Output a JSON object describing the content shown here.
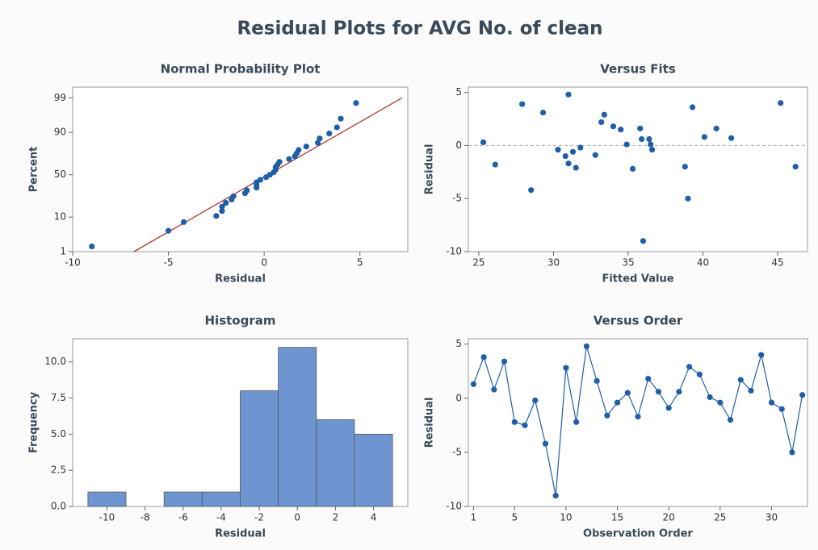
{
  "title": "Residual Plots for AVG No. of clean",
  "chart_data": [
    {
      "type": "probability",
      "title": "Normal Probability Plot",
      "xlabel": "Residual",
      "ylabel": "Percent",
      "x": [
        -9.0,
        -5.0,
        -4.2,
        -2.5,
        -2.2,
        -2.2,
        -2.0,
        -1.7,
        -1.6,
        -1.0,
        -0.9,
        -0.4,
        -0.4,
        -0.4,
        -0.2,
        0.1,
        0.3,
        0.5,
        0.6,
        0.6,
        0.7,
        0.8,
        1.3,
        1.6,
        1.7,
        1.8,
        2.2,
        2.8,
        2.9,
        3.4,
        3.8,
        4.0,
        4.8
      ],
      "values": [
        1.5,
        4.5,
        7.6,
        10.6,
        13.6,
        16.7,
        19.7,
        22.7,
        25.8,
        28.8,
        31.8,
        34.8,
        37.9,
        40.9,
        43.9,
        47.0,
        50.0,
        53.0,
        56.1,
        59.1,
        62.1,
        65.2,
        68.2,
        71.2,
        74.2,
        77.3,
        80.3,
        83.3,
        86.4,
        89.4,
        92.4,
        95.5,
        98.5
      ],
      "color": "#1f5fa8",
      "fit_line": {
        "x": [
          -6.8,
          7.2
        ],
        "y": [
          1,
          99
        ],
        "color": "#b03a2e"
      },
      "xlim": [
        -10,
        7.5
      ],
      "xticks": [
        -10,
        -5,
        0,
        5
      ],
      "ylim": [
        1,
        99.6
      ],
      "yticks": [
        1,
        10,
        50,
        90,
        99
      ]
    },
    {
      "type": "scatter",
      "title": "Versus Fits",
      "xlabel": "Fitted Value",
      "ylabel": "Residual",
      "x": [
        25.3,
        26.1,
        27.9,
        28.5,
        29.3,
        30.3,
        30.8,
        31.0,
        31.0,
        31.3,
        31.5,
        31.8,
        32.8,
        33.2,
        33.4,
        34.0,
        34.5,
        34.9,
        35.3,
        35.8,
        35.9,
        36.0,
        36.4,
        36.5,
        36.6,
        38.8,
        39.0,
        39.3,
        40.1,
        40.9,
        41.9,
        45.2,
        46.2
      ],
      "values": [
        0.3,
        -1.8,
        3.9,
        -4.2,
        3.1,
        -0.4,
        -1.0,
        4.8,
        -1.7,
        -0.6,
        -2.1,
        -0.2,
        -0.9,
        2.2,
        2.9,
        1.8,
        1.5,
        0.1,
        -2.2,
        1.6,
        0.6,
        -9.0,
        0.6,
        0.1,
        -0.4,
        -2.0,
        -5.0,
        3.6,
        0.8,
        1.6,
        0.7,
        4.0,
        -2.0
      ],
      "color": "#1f5fa8",
      "hline": 0,
      "xlim": [
        24.3,
        47
      ],
      "xticks": [
        25,
        30,
        35,
        40,
        45
      ],
      "ylim": [
        -10,
        5.5
      ],
      "yticks": [
        -10,
        -5,
        0,
        5
      ]
    },
    {
      "type": "histogram",
      "title": "Histogram",
      "xlabel": "Residual",
      "ylabel": "Frequency",
      "bins": [
        -11,
        -9,
        -7,
        -5,
        -3,
        -1,
        1,
        3,
        5
      ],
      "values": [
        1,
        0,
        1,
        1,
        8,
        11,
        6,
        5
      ],
      "color": "#6f95d0",
      "xlim": [
        -11.8,
        5.8
      ],
      "xticks": [
        -10,
        -8,
        -6,
        -4,
        -2,
        0,
        2,
        4
      ],
      "ylim": [
        0,
        11.6
      ],
      "yticks": [
        {
          "value": 0,
          "label": "0.0"
        },
        {
          "value": 2.5,
          "label": "2.5"
        },
        {
          "value": 5,
          "label": "5.0"
        },
        {
          "value": 7.5,
          "label": "7.5"
        },
        {
          "value": 10,
          "label": "10.0"
        }
      ]
    },
    {
      "type": "line",
      "title": "Versus Order",
      "xlabel": "Observation Order",
      "ylabel": "Residual",
      "x": [
        1,
        2,
        3,
        4,
        5,
        6,
        7,
        8,
        9,
        10,
        11,
        12,
        13,
        14,
        15,
        16,
        17,
        18,
        19,
        20,
        21,
        22,
        23,
        24,
        25,
        26,
        27,
        28,
        29,
        30,
        31,
        32,
        33
      ],
      "values": [
        1.3,
        3.8,
        0.8,
        3.4,
        -2.2,
        -2.5,
        -0.2,
        -4.2,
        -9.0,
        2.8,
        -2.2,
        4.8,
        1.6,
        -1.6,
        -0.4,
        0.5,
        -1.7,
        1.8,
        0.6,
        -0.9,
        0.6,
        2.9,
        2.2,
        0.1,
        -0.4,
        -2.0,
        1.7,
        0.7,
        4.0,
        -0.4,
        -1.0,
        -5.0,
        0.3
      ],
      "color": "#1f5fa8",
      "xlim": [
        0.5,
        33.5
      ],
      "xticks": [
        1,
        5,
        10,
        15,
        20,
        25,
        30
      ],
      "ylim": [
        -10,
        5.5
      ],
      "yticks": [
        -10,
        -5,
        0,
        5
      ]
    }
  ]
}
